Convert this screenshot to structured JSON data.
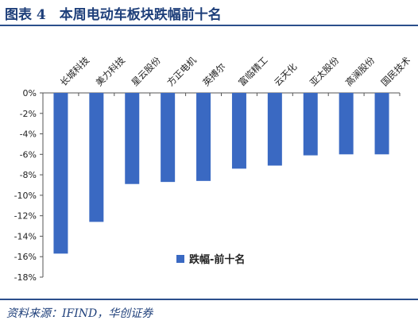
{
  "header": {
    "title": "图表 4　本周电动车板块跌幅前十名"
  },
  "footer": {
    "source": "资料来源：IFIND，华创证券"
  },
  "chart_data": {
    "type": "bar",
    "categories": [
      "长城科技",
      "美力科技",
      "星云股份",
      "方正电机",
      "英搏尔",
      "富临精工",
      "云天化",
      "亚太股份",
      "高澜股份",
      "国民技术"
    ],
    "series": [
      {
        "name": "跌幅-前十名",
        "values": [
          -15.7,
          -12.6,
          -8.9,
          -8.7,
          -8.6,
          -7.4,
          -7.1,
          -6.1,
          -6.0,
          -6.0
        ],
        "color": "#3a69c2"
      }
    ],
    "ylim": [
      -18,
      0
    ],
    "yticks": [
      0,
      -2,
      -4,
      -6,
      -8,
      -10,
      -12,
      -14,
      -16,
      -18
    ],
    "ytick_labels": [
      "0%",
      "-2%",
      "-4%",
      "-6%",
      "-8%",
      "-10%",
      "-12%",
      "-14%",
      "-16%",
      "-18%"
    ],
    "legend": {
      "label": "跌幅-前十名",
      "placement": "bottom-right inside"
    },
    "grid": false
  }
}
